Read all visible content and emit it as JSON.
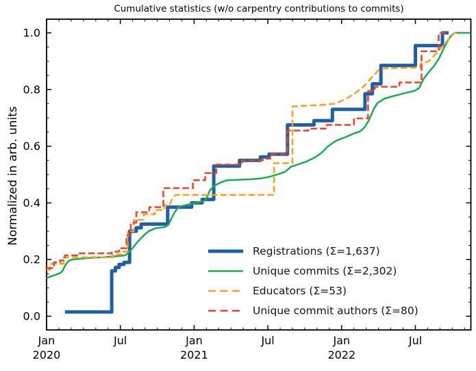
{
  "title": "Cumulative statistics (w/o carpentry contributions to commits)",
  "axes": {
    "ylabel": "Normalized in arb. units",
    "y_ticks": [
      "0.0",
      "0.2",
      "0.4",
      "0.6",
      "0.8",
      "1.0"
    ],
    "x_ticks": [
      {
        "m": 0,
        "label": "Jan",
        "year": "2020"
      },
      {
        "m": 6,
        "label": "Jul",
        "year": ""
      },
      {
        "m": 12,
        "label": "Jan",
        "year": "2021"
      },
      {
        "m": 18,
        "label": "Jul",
        "year": ""
      },
      {
        "m": 24,
        "label": "Jan",
        "year": "2022"
      },
      {
        "m": 30,
        "label": "Jul",
        "year": ""
      }
    ]
  },
  "chart_data": {
    "type": "line",
    "title": "Cumulative statistics (w/o carpentry contributions to commits)",
    "xlabel": "",
    "ylabel": "Normalized in arb. units",
    "x_unit": "months since Jan 2020",
    "xlim": [
      0,
      34.5
    ],
    "ylim": [
      -0.048,
      1.048
    ],
    "grid": false,
    "legend_position": "lower right",
    "series": [
      {
        "name": "registrations",
        "label": "Registrations  (Σ=1,637)",
        "total": 1637,
        "color": "#1c61a7",
        "dash": false,
        "width": 5,
        "points": [
          [
            1.5,
            0.015
          ],
          [
            5.3,
            0.015
          ],
          [
            5.3,
            0.16
          ],
          [
            5.6,
            0.16
          ],
          [
            5.6,
            0.172
          ],
          [
            5.9,
            0.172
          ],
          [
            5.9,
            0.183
          ],
          [
            6.3,
            0.183
          ],
          [
            6.3,
            0.19
          ],
          [
            6.75,
            0.19
          ],
          [
            6.75,
            0.3
          ],
          [
            7.3,
            0.3
          ],
          [
            7.3,
            0.312
          ],
          [
            7.7,
            0.312
          ],
          [
            7.7,
            0.325
          ],
          [
            9.85,
            0.325
          ],
          [
            9.85,
            0.385
          ],
          [
            11.8,
            0.385
          ],
          [
            11.8,
            0.4
          ],
          [
            12.65,
            0.4
          ],
          [
            12.65,
            0.412
          ],
          [
            13.6,
            0.412
          ],
          [
            13.6,
            0.53
          ],
          [
            15.7,
            0.53
          ],
          [
            15.7,
            0.55
          ],
          [
            17.4,
            0.55
          ],
          [
            17.4,
            0.562
          ],
          [
            18.1,
            0.562
          ],
          [
            18.1,
            0.572
          ],
          [
            19.6,
            0.572
          ],
          [
            19.6,
            0.675
          ],
          [
            21.75,
            0.675
          ],
          [
            21.75,
            0.69
          ],
          [
            23.25,
            0.69
          ],
          [
            23.25,
            0.73
          ],
          [
            25.9,
            0.73
          ],
          [
            25.9,
            0.785
          ],
          [
            26.5,
            0.785
          ],
          [
            26.5,
            0.82
          ],
          [
            27.2,
            0.82
          ],
          [
            27.2,
            0.885
          ],
          [
            30.0,
            0.885
          ],
          [
            30.0,
            0.955
          ],
          [
            32.2,
            0.955
          ],
          [
            32.2,
            1.0
          ],
          [
            32.7,
            1.0
          ]
        ]
      },
      {
        "name": "unique-commits",
        "label": "Unique commits (Σ=2,302)",
        "total": 2302,
        "color": "#14ae4b",
        "dash": false,
        "width": 2.5,
        "points": [
          [
            0,
            0.135
          ],
          [
            0.5,
            0.143
          ],
          [
            1.1,
            0.152
          ],
          [
            1.3,
            0.16
          ],
          [
            1.5,
            0.178
          ],
          [
            1.8,
            0.196
          ],
          [
            2.1,
            0.2
          ],
          [
            3.2,
            0.205
          ],
          [
            4.5,
            0.208
          ],
          [
            5.8,
            0.212
          ],
          [
            6.4,
            0.215
          ],
          [
            6.6,
            0.222
          ],
          [
            7.0,
            0.24
          ],
          [
            7.4,
            0.262
          ],
          [
            7.9,
            0.285
          ],
          [
            8.3,
            0.3
          ],
          [
            8.8,
            0.31
          ],
          [
            9.6,
            0.315
          ],
          [
            9.9,
            0.322
          ],
          [
            10.1,
            0.34
          ],
          [
            10.4,
            0.365
          ],
          [
            10.7,
            0.385
          ],
          [
            11.3,
            0.392
          ],
          [
            12.2,
            0.4
          ],
          [
            12.9,
            0.408
          ],
          [
            13.1,
            0.425
          ],
          [
            13.3,
            0.445
          ],
          [
            13.7,
            0.462
          ],
          [
            14.2,
            0.473
          ],
          [
            14.7,
            0.48
          ],
          [
            16.5,
            0.483
          ],
          [
            17.4,
            0.486
          ],
          [
            18.1,
            0.492
          ],
          [
            18.9,
            0.502
          ],
          [
            19.4,
            0.51
          ],
          [
            19.9,
            0.528
          ],
          [
            20.6,
            0.538
          ],
          [
            21.2,
            0.547
          ],
          [
            21.9,
            0.562
          ],
          [
            22.4,
            0.578
          ],
          [
            22.9,
            0.6
          ],
          [
            23.5,
            0.618
          ],
          [
            24.3,
            0.632
          ],
          [
            25.0,
            0.645
          ],
          [
            25.5,
            0.652
          ],
          [
            25.9,
            0.668
          ],
          [
            26.2,
            0.69
          ],
          [
            26.6,
            0.73
          ],
          [
            26.9,
            0.752
          ],
          [
            27.5,
            0.768
          ],
          [
            28.3,
            0.778
          ],
          [
            29.2,
            0.788
          ],
          [
            29.9,
            0.795
          ],
          [
            30.3,
            0.805
          ],
          [
            30.7,
            0.84
          ],
          [
            31.1,
            0.862
          ],
          [
            31.5,
            0.882
          ],
          [
            31.9,
            0.908
          ],
          [
            32.3,
            0.945
          ],
          [
            32.6,
            0.97
          ],
          [
            32.9,
            0.99
          ],
          [
            33.2,
            1.0
          ],
          [
            34.5,
            1.0
          ]
        ]
      },
      {
        "name": "educators",
        "label": "Educators (Σ=53)",
        "total": 53,
        "color": "#ff9e1b",
        "dash": true,
        "width": 2.5,
        "points": [
          [
            0,
            0.165
          ],
          [
            0.3,
            0.165
          ],
          [
            0.3,
            0.185
          ],
          [
            1.4,
            0.185
          ],
          [
            1.4,
            0.208
          ],
          [
            5.4,
            0.208
          ],
          [
            5.4,
            0.218
          ],
          [
            6.1,
            0.218
          ],
          [
            6.1,
            0.228
          ],
          [
            6.6,
            0.228
          ],
          [
            6.6,
            0.3
          ],
          [
            7.1,
            0.3
          ],
          [
            7.1,
            0.34
          ],
          [
            7.9,
            0.34
          ],
          [
            7.9,
            0.36
          ],
          [
            8.8,
            0.36
          ],
          [
            8.8,
            0.375
          ],
          [
            9.6,
            0.375
          ],
          [
            9.6,
            0.392
          ],
          [
            10.0,
            0.392
          ],
          [
            10.2,
            0.412
          ],
          [
            10.5,
            0.428
          ],
          [
            18.5,
            0.428
          ],
          [
            18.5,
            0.54
          ],
          [
            20.0,
            0.54
          ],
          [
            20.0,
            0.74
          ],
          [
            22.0,
            0.745
          ],
          [
            23.5,
            0.75
          ],
          [
            24.4,
            0.768
          ],
          [
            25.2,
            0.79
          ],
          [
            25.9,
            0.815
          ],
          [
            26.5,
            0.845
          ],
          [
            27.0,
            0.868
          ],
          [
            27.5,
            0.875
          ],
          [
            30.4,
            0.878
          ],
          [
            30.4,
            0.89
          ],
          [
            31.1,
            0.9
          ],
          [
            31.7,
            0.928
          ],
          [
            32.4,
            0.962
          ],
          [
            32.9,
            0.988
          ],
          [
            33.2,
            1.0
          ],
          [
            33.4,
            1.0
          ]
        ]
      },
      {
        "name": "unique-commit-authors",
        "label": "Unique commit authors (Σ=80)",
        "total": 80,
        "color": "#f63e20",
        "dash": true,
        "width": 2.5,
        "points": [
          [
            0,
            0.17
          ],
          [
            0.6,
            0.17
          ],
          [
            0.6,
            0.19
          ],
          [
            1.1,
            0.19
          ],
          [
            1.1,
            0.197
          ],
          [
            1.5,
            0.197
          ],
          [
            1.5,
            0.215
          ],
          [
            2.5,
            0.215
          ],
          [
            2.5,
            0.222
          ],
          [
            5.3,
            0.222
          ],
          [
            5.3,
            0.228
          ],
          [
            5.9,
            0.228
          ],
          [
            5.9,
            0.24
          ],
          [
            6.5,
            0.24
          ],
          [
            6.5,
            0.285
          ],
          [
            6.85,
            0.285
          ],
          [
            6.85,
            0.33
          ],
          [
            7.3,
            0.33
          ],
          [
            7.3,
            0.367
          ],
          [
            8.35,
            0.367
          ],
          [
            8.35,
            0.385
          ],
          [
            9.5,
            0.385
          ],
          [
            9.5,
            0.452
          ],
          [
            11.9,
            0.452
          ],
          [
            11.9,
            0.48
          ],
          [
            12.9,
            0.48
          ],
          [
            12.9,
            0.505
          ],
          [
            13.8,
            0.505
          ],
          [
            13.8,
            0.535
          ],
          [
            15.9,
            0.535
          ],
          [
            15.9,
            0.55
          ],
          [
            17.6,
            0.55
          ],
          [
            17.6,
            0.556
          ],
          [
            18.2,
            0.556
          ],
          [
            18.2,
            0.572
          ],
          [
            19.6,
            0.572
          ],
          [
            19.6,
            0.655
          ],
          [
            21.3,
            0.655
          ],
          [
            21.3,
            0.662
          ],
          [
            22.8,
            0.662
          ],
          [
            22.8,
            0.675
          ],
          [
            25.0,
            0.675
          ],
          [
            25.0,
            0.698
          ],
          [
            26.15,
            0.698
          ],
          [
            26.15,
            0.795
          ],
          [
            26.7,
            0.795
          ],
          [
            26.7,
            0.81
          ],
          [
            28.7,
            0.81
          ],
          [
            28.7,
            0.825
          ],
          [
            30.5,
            0.825
          ],
          [
            30.5,
            0.935
          ],
          [
            31.9,
            0.935
          ],
          [
            31.9,
            1.0
          ],
          [
            32.5,
            1.0
          ]
        ]
      }
    ]
  }
}
